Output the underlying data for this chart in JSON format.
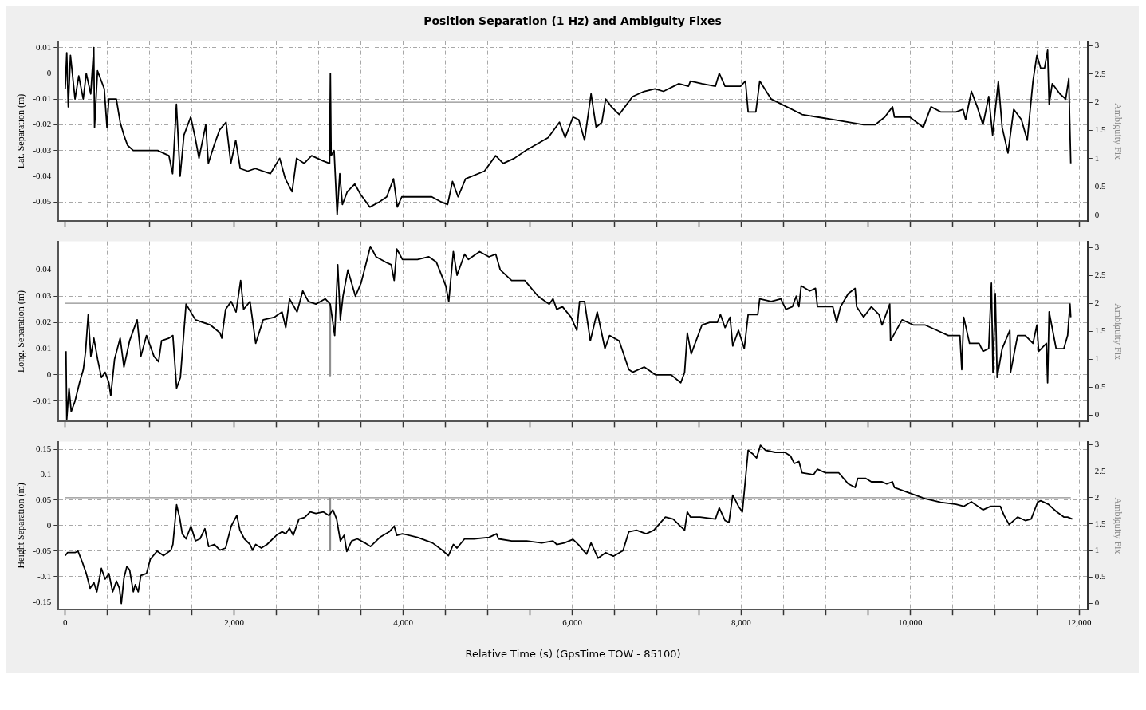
{
  "chart_data": [
    {
      "type": "line",
      "title": "Position Separation (1 Hz) and Ambiguity Fixes",
      "ylabel": "Lat. Separation (m)",
      "y2label": "Ambiguity Fix",
      "xlim": [
        -80,
        12100
      ],
      "ylim": [
        -0.0575,
        0.0125
      ],
      "y2lim": [
        -0.11,
        3.08
      ],
      "xticks": [
        {
          "value": 0,
          "label": null
        },
        {
          "value": 500,
          "label": null
        },
        {
          "value": 1000,
          "label": null
        },
        {
          "value": 1500,
          "label": null
        },
        {
          "value": 2000,
          "label": null
        },
        {
          "value": 2500,
          "label": null
        },
        {
          "value": 3000,
          "label": null
        },
        {
          "value": 3500,
          "label": null
        },
        {
          "value": 4000,
          "label": null
        },
        {
          "value": 4500,
          "label": null
        },
        {
          "value": 5000,
          "label": null
        },
        {
          "value": 5500,
          "label": null
        },
        {
          "value": 6000,
          "label": null
        },
        {
          "value": 6500,
          "label": null
        },
        {
          "value": 7000,
          "label": null
        },
        {
          "value": 7500,
          "label": null
        },
        {
          "value": 8000,
          "label": null
        },
        {
          "value": 8500,
          "label": null
        },
        {
          "value": 9000,
          "label": null
        },
        {
          "value": 9500,
          "label": null
        },
        {
          "value": 10000,
          "label": null
        },
        {
          "value": 10500,
          "label": null
        },
        {
          "value": 11000,
          "label": null
        },
        {
          "value": 11500,
          "label": null
        },
        {
          "value": 12000,
          "label": null
        }
      ],
      "yticks": [
        0.01,
        0,
        -0.01,
        -0.02,
        -0.03,
        -0.04,
        -0.05
      ],
      "y2ticks": [
        0,
        0.5,
        1,
        1.5,
        2,
        2.5,
        3
      ],
      "grid": true,
      "tick_labels": "y",
      "series": [
        {
          "color": "#000000",
          "x": [
            0,
            18,
            36,
            62,
            116,
            160,
            213,
            249,
            302,
            338,
            347,
            382,
            462,
            494,
            516,
            605,
            650,
            694,
            738,
            805,
            916,
            1094,
            1227,
            1271,
            1316,
            1360,
            1405,
            1485,
            1538,
            1583,
            1663,
            1694,
            1761,
            1827,
            1903,
            1960,
            2018,
            2071,
            2160,
            2249,
            2427,
            2538,
            2605,
            2685,
            2738,
            2827,
            2916,
            3049,
            3129,
            3138,
            3147,
            3182,
            3218,
            3249,
            3280,
            3338,
            3427,
            3494,
            3605,
            3716,
            3805,
            3885,
            3930,
            3983,
            4160,
            4338,
            4449,
            4525,
            4583,
            4649,
            4738,
            4961,
            5094,
            5183,
            5316,
            5449,
            5716,
            5849,
            5916,
            6009,
            6077,
            6146,
            6223,
            6283,
            6351,
            6396,
            6465,
            6556,
            6624,
            6715,
            6852,
            6980,
            7080,
            7262,
            7376,
            7399,
            7535,
            7695,
            7740,
            7809,
            7991,
            8050,
            8082,
            8173,
            8219,
            8355,
            8538,
            8720,
            8902,
            9084,
            9267,
            9449,
            9585,
            9699,
            9791,
            9813,
            9995,
            10155,
            10246,
            10360,
            10542,
            10624,
            10656,
            10724,
            10793,
            10861,
            10929,
            10975,
            11043,
            11088,
            11157,
            11225,
            11316,
            11385,
            11453,
            11499,
            11544,
            11590,
            11626,
            11644,
            11681,
            11772,
            11840,
            11877,
            11886,
            11900
          ],
          "values": [
            -0.006,
            0.008,
            -0.013,
            0.007,
            -0.01,
            -0.001,
            -0.01,
            0,
            -0.008,
            0.01,
            -0.021,
            0.001,
            -0.006,
            -0.021,
            -0.01,
            -0.01,
            -0.019,
            -0.024,
            -0.028,
            -0.03,
            -0.03,
            -0.03,
            -0.032,
            -0.039,
            -0.012,
            -0.04,
            -0.024,
            -0.017,
            -0.025,
            -0.033,
            -0.02,
            -0.035,
            -0.028,
            -0.022,
            -0.019,
            -0.035,
            -0.026,
            -0.037,
            -0.038,
            -0.037,
            -0.039,
            -0.033,
            -0.041,
            -0.046,
            -0.033,
            -0.035,
            -0.032,
            -0.034,
            -0.035,
            0,
            -0.032,
            -0.03,
            -0.055,
            -0.039,
            -0.051,
            -0.046,
            -0.043,
            -0.047,
            -0.052,
            -0.05,
            -0.048,
            -0.041,
            -0.052,
            -0.048,
            -0.048,
            -0.048,
            -0.05,
            -0.051,
            -0.042,
            -0.048,
            -0.041,
            -0.038,
            -0.032,
            -0.035,
            -0.033,
            -0.03,
            -0.025,
            -0.019,
            -0.025,
            -0.017,
            -0.018,
            -0.026,
            -0.008,
            -0.021,
            -0.019,
            -0.01,
            -0.013,
            -0.016,
            -0.013,
            -0.009,
            -0.007,
            -0.006,
            -0.007,
            -0.004,
            -0.005,
            -0.003,
            -0.004,
            -0.005,
            0,
            -0.005,
            -0.005,
            -0.003,
            -0.015,
            -0.015,
            -0.003,
            -0.01,
            -0.013,
            -0.016,
            -0.017,
            -0.018,
            -0.019,
            -0.02,
            -0.02,
            -0.017,
            -0.013,
            -0.017,
            -0.017,
            -0.021,
            -0.013,
            -0.015,
            -0.015,
            -0.014,
            -0.018,
            -0.007,
            -0.013,
            -0.02,
            -0.009,
            -0.024,
            -0.003,
            -0.021,
            -0.031,
            -0.014,
            -0.018,
            -0.026,
            -0.003,
            0.007,
            0.002,
            0.002,
            0.009,
            -0.012,
            -0.004,
            -0.008,
            -0.01,
            -0.002,
            -0.016,
            -0.035
          ]
        },
        {
          "color": "#909090",
          "axis": "y2",
          "x": [
            0,
            3130,
            3131,
            3139,
            3140,
            11900
          ],
          "values": [
            2,
            2,
            1.5,
            1.5,
            2,
            2
          ]
        }
      ]
    },
    {
      "type": "line",
      "ylabel": "Long. Separation (m)",
      "y2label": "Ambiguity Fix",
      "xlim": [
        -80,
        12100
      ],
      "ylim": [
        -0.0178,
        0.0509
      ],
      "y2lim": [
        -0.12,
        3.11
      ],
      "xticks": [
        {
          "value": 0,
          "label": null
        },
        {
          "value": 500,
          "label": null
        },
        {
          "value": 1000,
          "label": null
        },
        {
          "value": 1500,
          "label": null
        },
        {
          "value": 2000,
          "label": null
        },
        {
          "value": 2500,
          "label": null
        },
        {
          "value": 3000,
          "label": null
        },
        {
          "value": 3500,
          "label": null
        },
        {
          "value": 4000,
          "label": null
        },
        {
          "value": 4500,
          "label": null
        },
        {
          "value": 5000,
          "label": null
        },
        {
          "value": 5500,
          "label": null
        },
        {
          "value": 6000,
          "label": null
        },
        {
          "value": 6500,
          "label": null
        },
        {
          "value": 7000,
          "label": null
        },
        {
          "value": 7500,
          "label": null
        },
        {
          "value": 8000,
          "label": null
        },
        {
          "value": 8500,
          "label": null
        },
        {
          "value": 9000,
          "label": null
        },
        {
          "value": 9500,
          "label": null
        },
        {
          "value": 10000,
          "label": null
        },
        {
          "value": 10500,
          "label": null
        },
        {
          "value": 11000,
          "label": null
        },
        {
          "value": 11500,
          "label": null
        },
        {
          "value": 12000,
          "label": null
        }
      ],
      "yticks": [
        0.04,
        0.03,
        0.02,
        0.01,
        0,
        -0.01
      ],
      "y2ticks": [
        0,
        0.5,
        1,
        1.5,
        2,
        2.5,
        3
      ],
      "grid": true,
      "tick_labels": "y",
      "series": [
        {
          "color": "#000000",
          "x": [
            9,
            18,
            45,
            71,
            116,
            169,
            214,
            241,
            272,
            303,
            339,
            383,
            428,
            472,
            517,
            539,
            584,
            650,
            695,
            762,
            851,
            895,
            962,
            1051,
            1105,
            1140,
            1229,
            1274,
            1318,
            1363,
            1430,
            1541,
            1719,
            1831,
            1853,
            1898,
            1964,
            2022,
            2076,
            2111,
            2187,
            2254,
            2343,
            2477,
            2566,
            2610,
            2655,
            2744,
            2811,
            2878,
            2967,
            3078,
            3136,
            3189,
            3225,
            3256,
            3287,
            3345,
            3434,
            3501,
            3612,
            3679,
            3791,
            3858,
            3893,
            3924,
            3991,
            4169,
            4303,
            4392,
            4503,
            4539,
            4593,
            4637,
            4726,
            4771,
            4904,
            5015,
            5095,
            5149,
            5283,
            5439,
            5595,
            5728,
            5773,
            5817,
            5884,
            5986,
            6055,
            6087,
            6146,
            6214,
            6296,
            6387,
            6442,
            6556,
            6670,
            6715,
            6852,
            6989,
            7171,
            7285,
            7330,
            7362,
            7408,
            7535,
            7627,
            7718,
            7754,
            7809,
            7868,
            7900,
            7968,
            8036,
            8082,
            8196,
            8219,
            8355,
            8469,
            8528,
            8606,
            8651,
            8683,
            8710,
            8811,
            8879,
            8902,
            9084,
            9130,
            9175,
            9267,
            9348,
            9366,
            9449,
            9540,
            9631,
            9667,
            9758,
            9767,
            9904,
            10041,
            10178,
            10314,
            10451,
            10588,
            10610,
            10633,
            10702,
            10815,
            10861,
            10929,
            10961,
            10979,
            11007,
            11029,
            11088,
            11179,
            11188,
            11271,
            11362,
            11453,
            11499,
            11521,
            11612,
            11626,
            11644,
            11727,
            11818,
            11863,
            11891,
            11900
          ],
          "values": [
            0.009,
            -0.017,
            -0.005,
            -0.014,
            -0.01,
            -0.003,
            0.002,
            0.009,
            0.023,
            0.007,
            0.014,
            0.006,
            -0.001,
            0.001,
            -0.003,
            -0.008,
            0.006,
            0.014,
            0.003,
            0.013,
            0.021,
            0.007,
            0.015,
            0.007,
            0.005,
            0.013,
            0.014,
            0.015,
            -0.005,
            -0.001,
            0.027,
            0.021,
            0.019,
            0.016,
            0.014,
            0.025,
            0.028,
            0.024,
            0.036,
            0.025,
            0.028,
            0.012,
            0.021,
            0.022,
            0.024,
            0.018,
            0.029,
            0.024,
            0.032,
            0.028,
            0.027,
            0.029,
            0.027,
            0.015,
            0.042,
            0.021,
            0.03,
            0.04,
            0.03,
            0.035,
            0.049,
            0.045,
            0.043,
            0.042,
            0.036,
            0.048,
            0.044,
            0.044,
            0.045,
            0.043,
            0.034,
            0.028,
            0.047,
            0.038,
            0.046,
            0.044,
            0.047,
            0.045,
            0.046,
            0.04,
            0.036,
            0.036,
            0.03,
            0.027,
            0.029,
            0.025,
            0.026,
            0.022,
            0.017,
            0.028,
            0.028,
            0.013,
            0.024,
            0.01,
            0.015,
            0.013,
            0.002,
            0.001,
            0.003,
            0,
            0,
            -0.003,
            0.001,
            0.016,
            0.008,
            0.019,
            0.02,
            0.02,
            0.023,
            0.018,
            0.022,
            0.011,
            0.017,
            0.01,
            0.023,
            0.023,
            0.029,
            0.028,
            0.029,
            0.025,
            0.026,
            0.03,
            0.026,
            0.034,
            0.032,
            0.033,
            0.026,
            0.026,
            0.02,
            0.026,
            0.031,
            0.033,
            0.026,
            0.022,
            0.026,
            0.023,
            0.019,
            0.027,
            0.013,
            0.021,
            0.019,
            0.019,
            0.017,
            0.015,
            0.015,
            0.002,
            0.022,
            0.012,
            0.012,
            0.009,
            0.01,
            0.035,
            0.001,
            0.031,
            -0.001,
            0.01,
            0.017,
            0.001,
            0.015,
            0.015,
            0.012,
            0.019,
            0.009,
            0.012,
            -0.003,
            0.024,
            0.01,
            0.01,
            0.015,
            0.027,
            0.022
          ]
        },
        {
          "color": "#909090",
          "axis": "y2",
          "x": [
            0,
            3130,
            3131,
            3139,
            3140,
            11900
          ],
          "values": [
            2,
            2,
            0.7,
            0.7,
            2,
            2
          ]
        }
      ]
    },
    {
      "type": "line",
      "ylabel": "Height Separation (m)",
      "y2label": "Ambiguity Fix",
      "xlabel": "Relative Time (s) (GpsTime TOW - 85100)",
      "xlim": [
        -80,
        12100
      ],
      "ylim": [
        -0.165,
        0.165
      ],
      "y2lim": [
        -0.12,
        3.06
      ],
      "xticks": [
        0,
        {
          "value": 500,
          "label": null
        },
        {
          "value": 1000,
          "label": null
        },
        {
          "value": 1500,
          "label": null
        },
        {
          "value": 2000,
          "label": "2,000"
        },
        {
          "value": 2500,
          "label": null
        },
        {
          "value": 3000,
          "label": null
        },
        {
          "value": 3500,
          "label": null
        },
        {
          "value": 4000,
          "label": "4,000"
        },
        {
          "value": 4500,
          "label": null
        },
        {
          "value": 5000,
          "label": null
        },
        {
          "value": 5500,
          "label": null
        },
        {
          "value": 6000,
          "label": "6,000"
        },
        {
          "value": 6500,
          "label": null
        },
        {
          "value": 7000,
          "label": null
        },
        {
          "value": 7500,
          "label": null
        },
        {
          "value": 8000,
          "label": "8,000"
        },
        {
          "value": 8500,
          "label": null
        },
        {
          "value": 9000,
          "label": null
        },
        {
          "value": 9500,
          "label": null
        },
        {
          "value": 10000,
          "label": "10,000"
        },
        {
          "value": 10500,
          "label": null
        },
        {
          "value": 11000,
          "label": null
        },
        {
          "value": 11500,
          "label": null
        },
        {
          "value": 12000,
          "label": "12,000"
        }
      ],
      "yticks": [
        0.15,
        0.1,
        0.05,
        0,
        -0.05,
        -0.1,
        -0.15
      ],
      "y2ticks": [
        0,
        0.5,
        1,
        1.5,
        2,
        2.5,
        3
      ],
      "grid": true,
      "series": [
        {
          "color": "#000000",
          "x": [
            0,
            27,
            116,
            151,
            205,
            249,
            294,
            339,
            374,
            428,
            472,
            517,
            561,
            606,
            641,
            664,
            695,
            730,
            762,
            806,
            829,
            864,
            895,
            962,
            1007,
            1087,
            1163,
            1252,
            1274,
            1318,
            1354,
            1385,
            1430,
            1488,
            1541,
            1595,
            1653,
            1697,
            1764,
            1831,
            1898,
            1964,
            2031,
            2067,
            2120,
            2187,
            2218,
            2254,
            2321,
            2388,
            2499,
            2566,
            2610,
            2655,
            2699,
            2766,
            2833,
            2900,
            2967,
            3056,
            3122,
            3167,
            3212,
            3256,
            3301,
            3332,
            3390,
            3457,
            3546,
            3612,
            3724,
            3835,
            3893,
            3924,
            3991,
            4169,
            4347,
            4459,
            4535,
            4593,
            4637,
            4726,
            4838,
            5016,
            5105,
            5127,
            5283,
            5461,
            5639,
            5773,
            5817,
            5906,
            6009,
            6077,
            6169,
            6223,
            6305,
            6396,
            6487,
            6601,
            6670,
            6761,
            6875,
            6966,
            7103,
            7194,
            7330,
            7362,
            7399,
            7513,
            7695,
            7740,
            7809,
            7854,
            7900,
            7968,
            8014,
            8082,
            8137,
            8182,
            8228,
            8287,
            8401,
            8515,
            8583,
            8629,
            8683,
            8720,
            8856,
            8902,
            8993,
            9153,
            9267,
            9348,
            9380,
            9471,
            9540,
            9667,
            9722,
            9790,
            9813,
            9995,
            10178,
            10360,
            10542,
            10633,
            10724,
            10861,
            10952,
            11066,
            11111,
            11171,
            11271,
            11362,
            11431,
            11508,
            11544,
            11635,
            11727,
            11818,
            11863,
            11918
          ],
          "values": [
            -0.059,
            -0.053,
            -0.053,
            -0.05,
            -0.073,
            -0.094,
            -0.123,
            -0.112,
            -0.13,
            -0.084,
            -0.105,
            -0.094,
            -0.13,
            -0.109,
            -0.123,
            -0.153,
            -0.103,
            -0.08,
            -0.087,
            -0.13,
            -0.116,
            -0.13,
            -0.098,
            -0.094,
            -0.066,
            -0.05,
            -0.059,
            -0.048,
            -0.037,
            0.041,
            0.016,
            -0.016,
            -0.026,
            -0.001,
            -0.03,
            -0.026,
            -0.006,
            -0.041,
            -0.037,
            -0.048,
            -0.044,
            -0.001,
            0.02,
            -0.009,
            -0.026,
            -0.037,
            -0.048,
            -0.037,
            -0.044,
            -0.037,
            -0.019,
            -0.012,
            -0.016,
            -0.005,
            -0.019,
            0.013,
            0.016,
            0.027,
            0.024,
            0.027,
            0.02,
            0.031,
            0.013,
            -0.03,
            -0.019,
            -0.051,
            -0.03,
            -0.026,
            -0.034,
            -0.041,
            -0.023,
            -0.012,
            -0.001,
            -0.019,
            -0.016,
            -0.023,
            -0.034,
            -0.048,
            -0.059,
            -0.037,
            -0.044,
            -0.026,
            -0.026,
            -0.023,
            -0.016,
            -0.026,
            -0.03,
            -0.03,
            -0.034,
            -0.03,
            -0.037,
            -0.034,
            -0.027,
            -0.038,
            -0.056,
            -0.034,
            -0.064,
            -0.053,
            -0.06,
            -0.049,
            -0.012,
            -0.009,
            -0.016,
            -0.009,
            0.017,
            0.013,
            -0.009,
            0.027,
            0.017,
            0.017,
            0.013,
            0.035,
            0.01,
            0.006,
            0.06,
            0.038,
            0.027,
            0.148,
            0.141,
            0.133,
            0.158,
            0.148,
            0.144,
            0.144,
            0.137,
            0.122,
            0.126,
            0.104,
            0.1,
            0.111,
            0.104,
            0.104,
            0.082,
            0.075,
            0.093,
            0.093,
            0.086,
            0.086,
            0.082,
            0.086,
            0.075,
            0.064,
            0.053,
            0.046,
            0.042,
            0.038,
            0.047,
            0.031,
            0.038,
            0.038,
            0.02,
            0.002,
            0.017,
            0.01,
            0.013,
            0.046,
            0.049,
            0.042,
            0.028,
            0.017,
            0.017,
            0.013
          ]
        },
        {
          "color": "#909090",
          "axis": "y2",
          "x": [
            0,
            3130,
            3131,
            3139,
            3140,
            11900
          ],
          "values": [
            2,
            2,
            1,
            1,
            2,
            2
          ]
        }
      ]
    }
  ]
}
